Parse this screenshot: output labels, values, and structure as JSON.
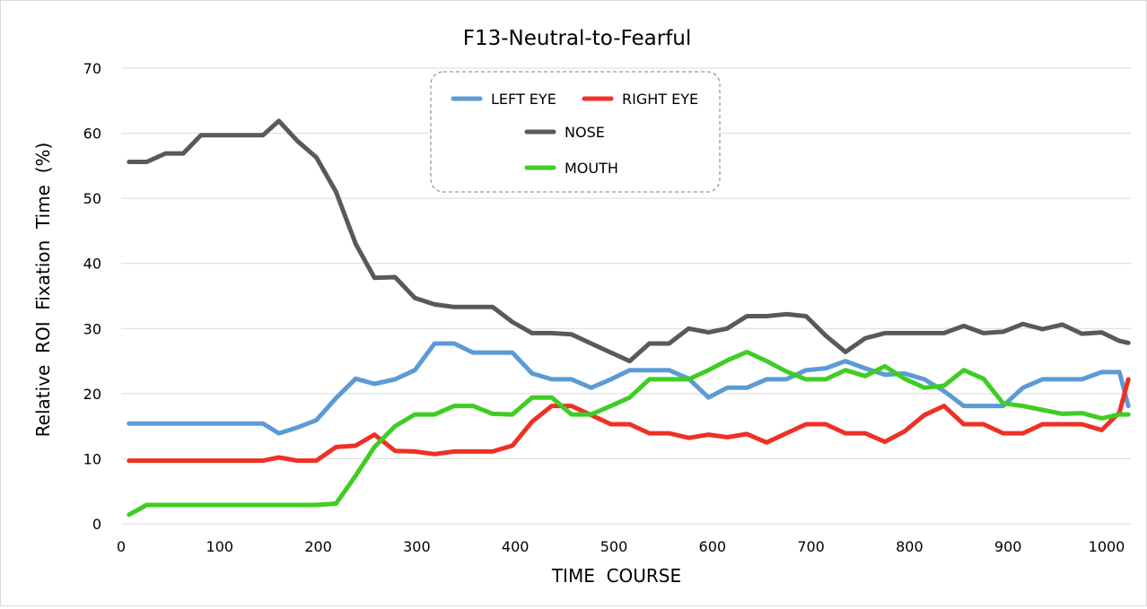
{
  "chart_data": {
    "type": "line",
    "title": "F13-Neutral-to-Fearful",
    "xlabel": "TIME  COURSE",
    "ylabel": "Relative  ROI  Fixation  Time  (%)",
    "xlim": [
      0,
      1030
    ],
    "ylim": [
      0,
      70
    ],
    "x_ticks": [
      "0",
      "100",
      "200",
      "300",
      "400",
      "500",
      "600",
      "700",
      "800",
      "900",
      "1000"
    ],
    "y_ticks": [
      "0",
      "10",
      "20",
      "30",
      "40",
      "50",
      "60",
      "70"
    ],
    "grid": "horizontal",
    "legend_position": "top-center",
    "x": [
      8,
      26,
      45,
      63,
      81,
      100,
      118,
      136,
      144,
      160,
      179,
      198,
      218,
      238,
      257,
      278,
      298,
      318,
      338,
      357,
      377,
      397,
      417,
      437,
      457,
      477,
      497,
      516,
      536,
      556,
      576,
      596,
      615,
      635,
      655,
      675,
      695,
      715,
      735,
      755,
      775,
      795,
      815,
      835,
      855,
      875,
      895,
      915,
      935,
      955,
      975,
      995,
      1013,
      1022
    ],
    "series": [
      {
        "name": "LEFT EYE",
        "color": "#5b9bd5",
        "values": [
          15.4,
          15.4,
          15.4,
          15.4,
          15.4,
          15.4,
          15.4,
          15.4,
          15.4,
          13.9,
          14.8,
          15.9,
          19.3,
          22.3,
          21.5,
          22.2,
          23.6,
          27.7,
          27.7,
          26.3,
          26.3,
          26.3,
          23.1,
          22.2,
          22.2,
          20.9,
          22.2,
          23.6,
          23.6,
          23.6,
          22.3,
          19.4,
          20.9,
          20.9,
          22.2,
          22.2,
          23.6,
          23.9,
          25.0,
          23.9,
          22.9,
          23.1,
          22.2,
          20.4,
          18.1,
          18.1,
          18.1,
          20.9,
          22.2,
          22.2,
          22.2,
          23.3,
          23.3,
          18.1
        ]
      },
      {
        "name": "RIGHT EYE",
        "color": "#ee3124",
        "values": [
          9.7,
          9.7,
          9.7,
          9.7,
          9.7,
          9.7,
          9.7,
          9.7,
          9.7,
          10.2,
          9.7,
          9.7,
          11.8,
          12.0,
          13.7,
          11.2,
          11.1,
          10.7,
          11.1,
          11.1,
          11.1,
          12.0,
          15.7,
          18.1,
          18.1,
          16.7,
          15.3,
          15.3,
          13.9,
          13.9,
          13.2,
          13.7,
          13.3,
          13.8,
          12.5,
          13.9,
          15.3,
          15.3,
          13.9,
          13.9,
          12.6,
          14.2,
          16.7,
          18.1,
          15.3,
          15.3,
          13.9,
          13.9,
          15.3,
          15.3,
          15.3,
          14.4,
          17.1,
          22.2
        ]
      },
      {
        "name": "NOSE",
        "color": "#595959",
        "values": [
          55.6,
          55.6,
          56.9,
          56.9,
          59.7,
          59.7,
          59.7,
          59.7,
          59.7,
          61.9,
          58.8,
          56.3,
          51.0,
          43.0,
          37.8,
          37.9,
          34.7,
          33.7,
          33.3,
          33.3,
          33.3,
          31.0,
          29.3,
          29.3,
          29.1,
          27.7,
          26.3,
          25.0,
          27.7,
          27.7,
          30.0,
          29.4,
          30.0,
          31.9,
          31.9,
          32.2,
          31.9,
          28.9,
          26.4,
          28.5,
          29.3,
          29.3,
          29.3,
          29.3,
          30.4,
          29.3,
          29.5,
          30.7,
          29.9,
          30.6,
          29.2,
          29.4,
          28.1,
          27.8
        ]
      },
      {
        "name": "MOUTH",
        "color": "#3fcd24",
        "values": [
          1.4,
          2.9,
          2.9,
          2.9,
          2.9,
          2.9,
          2.9,
          2.9,
          2.9,
          2.9,
          2.9,
          2.9,
          3.1,
          7.4,
          11.8,
          15.0,
          16.8,
          16.8,
          18.1,
          18.1,
          16.9,
          16.8,
          19.4,
          19.4,
          16.8,
          16.8,
          18.1,
          19.4,
          22.2,
          22.2,
          22.2,
          23.6,
          25.1,
          26.4,
          25.0,
          23.4,
          22.2,
          22.2,
          23.6,
          22.7,
          24.2,
          22.3,
          20.9,
          21.2,
          23.6,
          22.3,
          18.5,
          18.1,
          17.5,
          16.9,
          17.0,
          16.2,
          16.8,
          16.8
        ]
      }
    ]
  },
  "colors": {
    "grid": "#d9d9d9",
    "legend_border": "#7f7f7f"
  }
}
